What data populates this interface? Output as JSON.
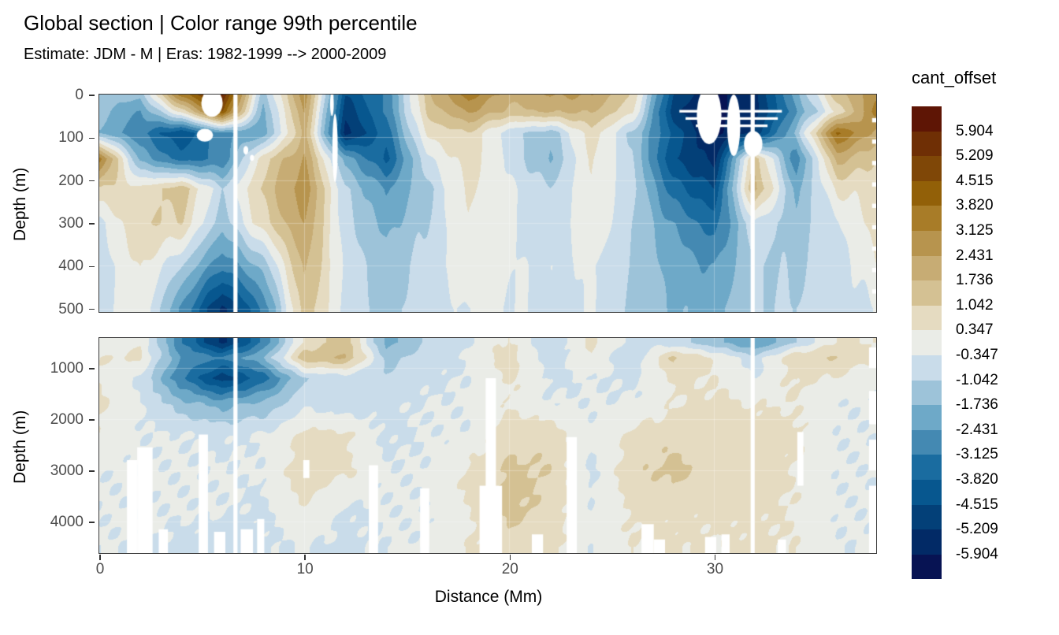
{
  "title": "Global section | Color range 99th percentile",
  "subtitle": "Estimate: JDM - M | Eras: 1982-1999 --> 2000-2009",
  "axes": {
    "x": {
      "label": "Distance (Mm)",
      "ticks": [
        0,
        10,
        20,
        30
      ],
      "range": [
        0,
        37.9
      ]
    },
    "y": {
      "label": "Depth (m)"
    },
    "y_upper": {
      "ticks": [
        0,
        100,
        200,
        300,
        400,
        500
      ],
      "range": [
        0,
        508
      ]
    },
    "y_lower": {
      "ticks": [
        1000,
        2000,
        3000,
        4000
      ],
      "range": [
        415,
        4615
      ]
    }
  },
  "legend": {
    "title": "cant_offset",
    "labels": [
      "5.904",
      "5.209",
      "4.515",
      "3.820",
      "3.125",
      "2.431",
      "1.736",
      "1.042",
      "0.347",
      "-0.347",
      "-1.042",
      "-1.736",
      "-2.431",
      "-3.125",
      "-3.820",
      "-4.515",
      "-5.209",
      "-5.904"
    ],
    "colors": [
      "#5e1505",
      "#6f2f05",
      "#7f4707",
      "#926008",
      "#a87c28",
      "#b7944e",
      "#c7ac74",
      "#d4c193",
      "#e5dbc1",
      "#eaece7",
      "#c9dcea",
      "#9dc3d9",
      "#6ea9c8",
      "#4489b2",
      "#1a6ca0",
      "#07578f",
      "#034078",
      "#022a66",
      "#071353"
    ]
  },
  "chart_data": {
    "type": "heatmap",
    "title": "Global section | Color range 99th percentile",
    "subtitle": "Estimate: JDM - M | Eras: 1982-1999 --> 2000-2009",
    "xlabel": "Distance (Mm)",
    "ylabel": "Depth (m)",
    "value_name": "cant_offset",
    "x_range": [
      0,
      37.9
    ],
    "levels_desc": [
      5.904,
      5.209,
      4.515,
      3.82,
      3.125,
      2.431,
      1.736,
      1.042,
      0.347,
      -0.347,
      -1.042,
      -1.736,
      -2.431,
      -3.125,
      -3.82,
      -4.515,
      -5.209,
      -5.904
    ],
    "palette_top_to_bottom": [
      "#5e1505",
      "#6f2f05",
      "#7f4707",
      "#926008",
      "#a87c28",
      "#b7944e",
      "#c7ac74",
      "#d4c193",
      "#e5dbc1",
      "#eaece7",
      "#c9dcea",
      "#9dc3d9",
      "#6ea9c8",
      "#4489b2",
      "#1a6ca0",
      "#07578f",
      "#034078",
      "#022a66",
      "#071353"
    ],
    "x_nodes": [
      0,
      2,
      4,
      6,
      8,
      10,
      12,
      14,
      16,
      18,
      20,
      22,
      24,
      26,
      28,
      30,
      32,
      34,
      36,
      38
    ],
    "panels": [
      {
        "id": "upper",
        "depth_range": [
          0,
          508
        ],
        "depth_nodes": [
          0,
          40,
          90,
          150,
          220,
          300,
          400,
          500
        ],
        "values": [
          [
            -1.2,
            -1.5,
            3.5,
            6.0,
            -1.5,
            3.0,
            -4.5,
            -3.0,
            1.5,
            3.5,
            2.0,
            2.5,
            2.5,
            1.0,
            -4.5,
            -6.0,
            -5.5,
            -2.0,
            1.5,
            3.0
          ],
          [
            -1.5,
            -2.5,
            0.5,
            4.5,
            -2.0,
            2.5,
            -5.0,
            -3.0,
            1.2,
            2.5,
            1.5,
            1.8,
            1.8,
            0.5,
            -5.0,
            -6.0,
            -5.5,
            -2.5,
            0.5,
            3.5
          ],
          [
            -1.8,
            -3.0,
            -4.5,
            -2.5,
            -2.2,
            2.0,
            -5.5,
            -3.5,
            0.5,
            1.0,
            -0.8,
            -1.5,
            0.8,
            -1.2,
            -4.0,
            -6.0,
            -5.0,
            -1.5,
            4.0,
            2.0
          ],
          [
            3.5,
            -2.0,
            -3.5,
            -3.0,
            0.8,
            2.5,
            -2.0,
            -4.0,
            -0.5,
            0.8,
            -0.5,
            -1.8,
            0.5,
            -1.0,
            -4.5,
            -5.5,
            1.5,
            -3.0,
            2.0,
            1.0
          ],
          [
            1.0,
            0.5,
            1.5,
            -1.0,
            1.2,
            3.0,
            -1.0,
            -2.5,
            -1.2,
            0.5,
            -0.3,
            -1.0,
            0.3,
            -0.8,
            -3.5,
            -4.5,
            2.0,
            -2.0,
            0.5,
            0.5
          ],
          [
            -0.5,
            1.0,
            1.0,
            -1.5,
            0.8,
            2.5,
            -0.8,
            -2.0,
            -1.0,
            0.3,
            -0.3,
            -0.8,
            0.3,
            -1.0,
            -2.5,
            -3.5,
            -0.5,
            -1.5,
            -0.5,
            0.8
          ],
          [
            -0.8,
            0.5,
            -1.0,
            -3.0,
            -1.5,
            2.0,
            -0.5,
            -1.5,
            -0.8,
            0.3,
            -0.3,
            -0.5,
            -0.3,
            -1.0,
            -2.0,
            -2.5,
            -1.0,
            -1.2,
            -0.8,
            0.3
          ],
          [
            -0.5,
            0.3,
            -2.5,
            -5.5,
            -3.0,
            1.5,
            -0.5,
            -1.2,
            -0.8,
            -0.3,
            -0.3,
            -0.5,
            -0.3,
            -1.2,
            -1.8,
            -2.0,
            -1.0,
            -1.0,
            -0.8,
            -0.3
          ]
        ]
      },
      {
        "id": "lower",
        "depth_range": [
          415,
          4615
        ],
        "depth_nodes": [
          500,
          800,
          1200,
          1700,
          2300,
          3000,
          3800,
          4500
        ],
        "values": [
          [
            -0.3,
            0.3,
            -3.0,
            -5.5,
            -3.0,
            0.5,
            1.5,
            -2.0,
            -1.0,
            -0.5,
            0.5,
            -1.0,
            0.5,
            -0.5,
            -0.8,
            -1.5,
            -2.5,
            -1.0,
            0.5,
            0.3
          ],
          [
            0.3,
            0.5,
            -2.5,
            -3.0,
            -1.8,
            1.5,
            1.8,
            -1.2,
            -0.8,
            -0.3,
            0.8,
            -0.8,
            0.3,
            -1.0,
            1.2,
            0.3,
            -0.8,
            1.0,
            1.0,
            0.3
          ],
          [
            0.3,
            -0.5,
            -3.0,
            -5.0,
            -3.5,
            -1.0,
            -0.8,
            -1.0,
            -0.5,
            -0.3,
            0.5,
            -0.5,
            -0.3,
            -0.5,
            0.5,
            0.3,
            -0.3,
            0.5,
            0.3,
            -0.3
          ],
          [
            0.5,
            -0.3,
            -1.5,
            -2.0,
            -1.5,
            -0.5,
            -0.8,
            -0.5,
            -0.3,
            -0.3,
            0.3,
            -0.3,
            -0.3,
            -0.3,
            0.3,
            0.5,
            0.3,
            0.3,
            -0.3,
            -0.3
          ],
          [
            0.3,
            -0.3,
            -0.3,
            -0.5,
            -0.3,
            0.5,
            0.5,
            -0.5,
            -0.3,
            -0.3,
            0.8,
            0.8,
            -0.3,
            0.5,
            0.8,
            0.8,
            0.8,
            0.5,
            -0.3,
            -0.3
          ],
          [
            -0.3,
            -0.3,
            -0.3,
            -0.3,
            -0.3,
            0.8,
            0.5,
            -0.3,
            -0.3,
            0.5,
            1.2,
            1.0,
            -0.5,
            0.8,
            1.3,
            0.8,
            0.8,
            0.3,
            -0.3,
            -0.3
          ],
          [
            -0.3,
            -0.3,
            -0.3,
            -0.3,
            -0.5,
            0.3,
            -0.5,
            -0.3,
            -0.3,
            0.3,
            1.3,
            0.8,
            -0.3,
            0.5,
            0.5,
            0.5,
            0.5,
            0.3,
            -0.3,
            -0.3
          ],
          [
            -0.3,
            -0.3,
            -0.5,
            -0.8,
            -0.5,
            -0.3,
            -0.5,
            -0.3,
            -0.3,
            0.3,
            0.8,
            0.5,
            -0.3,
            0.3,
            0.5,
            0.3,
            0.5,
            0.3,
            -0.3,
            -0.3
          ]
        ]
      }
    ],
    "masks": {
      "no_data_stripes_mm": [
        {
          "x": 6.62,
          "w": 0.2
        },
        {
          "x": 31.85,
          "w": 0.2
        }
      ],
      "upper_white_ellipses": [
        [
          5.5,
          20,
          0.52,
          32
        ],
        [
          5.15,
          95,
          0.4,
          15
        ],
        [
          7.15,
          130,
          0.12,
          10
        ],
        [
          7.45,
          148,
          0.1,
          7
        ],
        [
          11.5,
          125,
          0.13,
          80
        ],
        [
          11.35,
          22,
          0.09,
          28
        ],
        [
          29.75,
          48,
          0.6,
          68
        ],
        [
          30.95,
          72,
          0.32,
          72
        ],
        [
          31.9,
          115,
          0.45,
          30
        ]
      ],
      "upper_white_rects": [
        [
          28.3,
          33.3,
          36,
          42
        ],
        [
          28.6,
          33.1,
          53,
          59
        ],
        [
          29.1,
          32.6,
          70,
          76
        ],
        [
          37.7,
          37.95,
          55,
          65
        ],
        [
          37.7,
          37.95,
          105,
          115
        ],
        [
          37.7,
          37.95,
          155,
          165
        ],
        [
          37.7,
          37.95,
          205,
          215
        ],
        [
          37.7,
          37.95,
          255,
          265
        ],
        [
          37.7,
          37.95,
          305,
          315
        ],
        [
          37.7,
          37.95,
          355,
          365
        ],
        [
          37.7,
          37.95,
          405,
          415
        ],
        [
          37.7,
          37.95,
          455,
          465
        ]
      ],
      "lower_white_rects": [
        [
          1.35,
          1.85,
          2800,
          4615
        ],
        [
          1.85,
          2.6,
          2550,
          4615
        ],
        [
          2.9,
          3.35,
          4150,
          4615
        ],
        [
          4.85,
          5.3,
          2300,
          4615
        ],
        [
          5.6,
          6.15,
          4200,
          4615
        ],
        [
          6.9,
          7.5,
          4150,
          4615
        ],
        [
          7.7,
          8.05,
          3950,
          4615
        ],
        [
          9.95,
          10.25,
          2800,
          3150
        ],
        [
          13.15,
          13.6,
          2900,
          4615
        ],
        [
          15.65,
          16.1,
          3350,
          4615
        ],
        [
          18.85,
          19.35,
          1200,
          4615
        ],
        [
          18.55,
          19.65,
          3300,
          4615
        ],
        [
          21.1,
          21.65,
          4250,
          4615
        ],
        [
          22.8,
          23.3,
          2350,
          4615
        ],
        [
          26.45,
          27.05,
          4050,
          4615
        ],
        [
          27.05,
          27.6,
          4350,
          4615
        ],
        [
          29.55,
          30.1,
          4300,
          4615
        ],
        [
          30.35,
          30.75,
          4250,
          4615
        ],
        [
          33.1,
          33.5,
          4350,
          4615
        ],
        [
          34.05,
          34.35,
          2250,
          3300
        ],
        [
          37.55,
          37.95,
          600,
          1000
        ],
        [
          37.55,
          37.95,
          1450,
          2100
        ],
        [
          37.55,
          37.95,
          2400,
          3000
        ],
        [
          37.55,
          37.95,
          3300,
          4615
        ]
      ]
    }
  }
}
